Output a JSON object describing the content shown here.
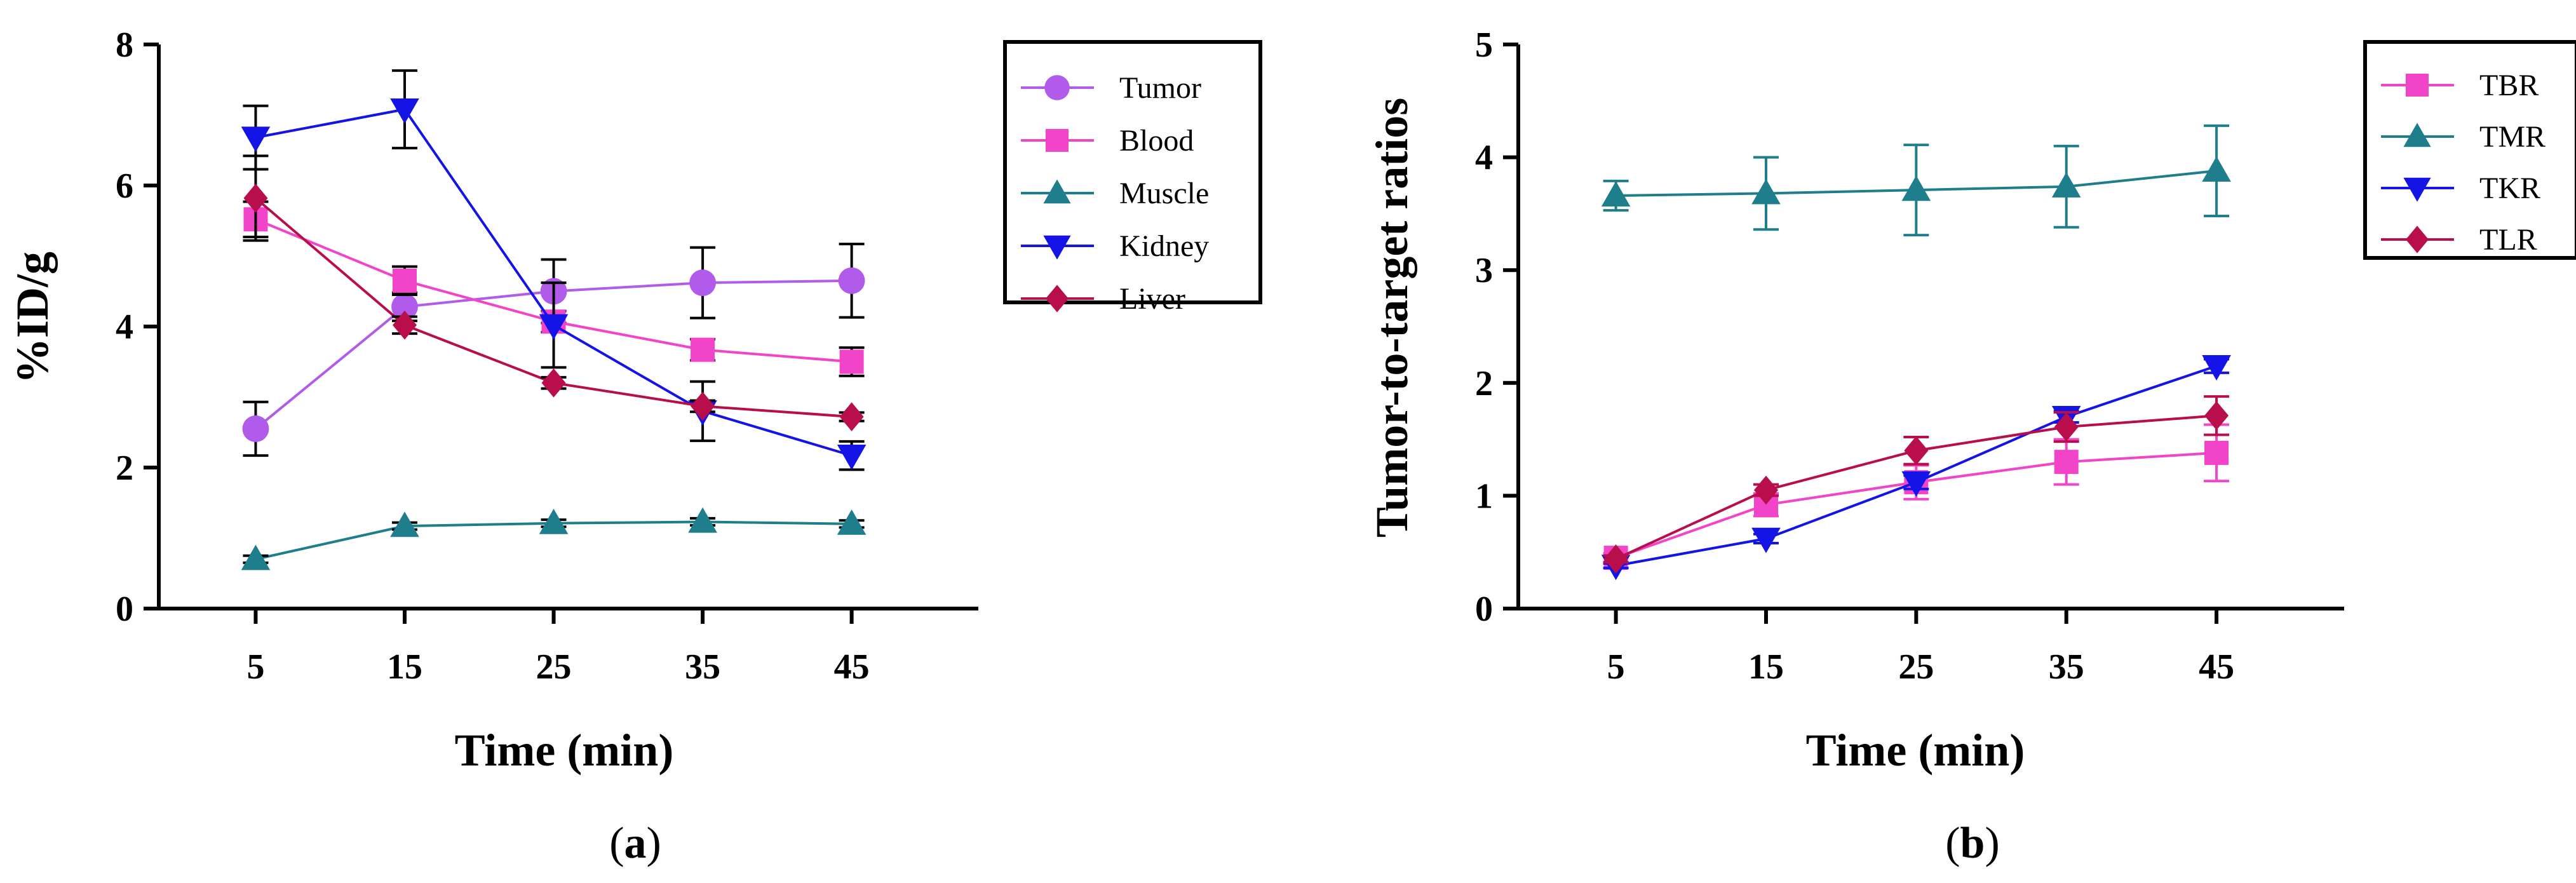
{
  "chart_data": [
    {
      "type": "line",
      "panel_label": "a",
      "xlabel": "Time (min)",
      "ylabel": "%ID/g",
      "x": [
        5,
        15,
        25,
        35,
        45
      ],
      "xticks": [
        "5",
        "15",
        "25",
        "35",
        "45"
      ],
      "ylim": [
        0,
        8
      ],
      "yticks": [
        "0",
        "2",
        "4",
        "6",
        "8"
      ],
      "grid": false,
      "legend": "top-right, boxed",
      "series": [
        {
          "name": "Tumor",
          "marker": "circle",
          "color": "#B15BEA",
          "values": [
            2.55,
            4.28,
            4.5,
            4.62,
            4.65
          ],
          "errors": [
            0.38,
            0.2,
            0.45,
            0.5,
            0.52
          ]
        },
        {
          "name": "Blood",
          "marker": "square",
          "color": "#F244C9",
          "values": [
            5.52,
            4.65,
            4.07,
            3.67,
            3.5
          ],
          "errors": [
            0.25,
            0.2,
            0.15,
            0.15,
            0.2
          ]
        },
        {
          "name": "Muscle",
          "marker": "triangle-up",
          "color": "#1F7E8C",
          "values": [
            0.7,
            1.17,
            1.21,
            1.23,
            1.2
          ],
          "errors": [
            0.05,
            0.05,
            0.05,
            0.05,
            0.05
          ]
        },
        {
          "name": "Kidney",
          "marker": "triangle-down",
          "color": "#1414E6",
          "values": [
            6.68,
            7.08,
            4.02,
            2.8,
            2.17
          ],
          "errors": [
            0.45,
            0.55,
            0.6,
            0.42,
            0.2
          ]
        },
        {
          "name": "Liver",
          "marker": "diamond",
          "color": "#B80F4C",
          "values": [
            5.82,
            4.02,
            3.2,
            2.87,
            2.72
          ],
          "errors": [
            0.6,
            0.12,
            0.08,
            0.08,
            0.06
          ]
        }
      ]
    },
    {
      "type": "line",
      "panel_label": "b",
      "xlabel": "Time (min)",
      "ylabel": "Tumor-to-target ratios",
      "x": [
        5,
        15,
        25,
        35,
        45
      ],
      "xticks": [
        "5",
        "15",
        "25",
        "35",
        "45"
      ],
      "ylim": [
        0,
        5
      ],
      "yticks": [
        "0",
        "1",
        "2",
        "3",
        "4",
        "5"
      ],
      "grid": false,
      "legend": "top-right, boxed",
      "series": [
        {
          "name": "TBR",
          "marker": "square",
          "color": "#F244C9",
          "values": [
            0.45,
            0.92,
            1.12,
            1.3,
            1.38
          ],
          "errors": [
            0.04,
            0.1,
            0.15,
            0.2,
            0.25
          ]
        },
        {
          "name": "TMR",
          "marker": "triangle-up",
          "color": "#1F7E8C",
          "values": [
            3.66,
            3.68,
            3.71,
            3.74,
            3.88
          ],
          "errors": [
            0.13,
            0.32,
            0.4,
            0.36,
            0.4
          ]
        },
        {
          "name": "TKR",
          "marker": "triangle-down",
          "color": "#1414E6",
          "values": [
            0.38,
            0.62,
            1.12,
            1.7,
            2.15
          ],
          "errors": [
            0.02,
            0.04,
            0.06,
            0.05,
            0.06
          ]
        },
        {
          "name": "TLR",
          "marker": "diamond",
          "color": "#B80F4C",
          "values": [
            0.44,
            1.05,
            1.4,
            1.61,
            1.71
          ],
          "errors": [
            0.03,
            0.05,
            0.12,
            0.13,
            0.17
          ]
        }
      ]
    }
  ]
}
